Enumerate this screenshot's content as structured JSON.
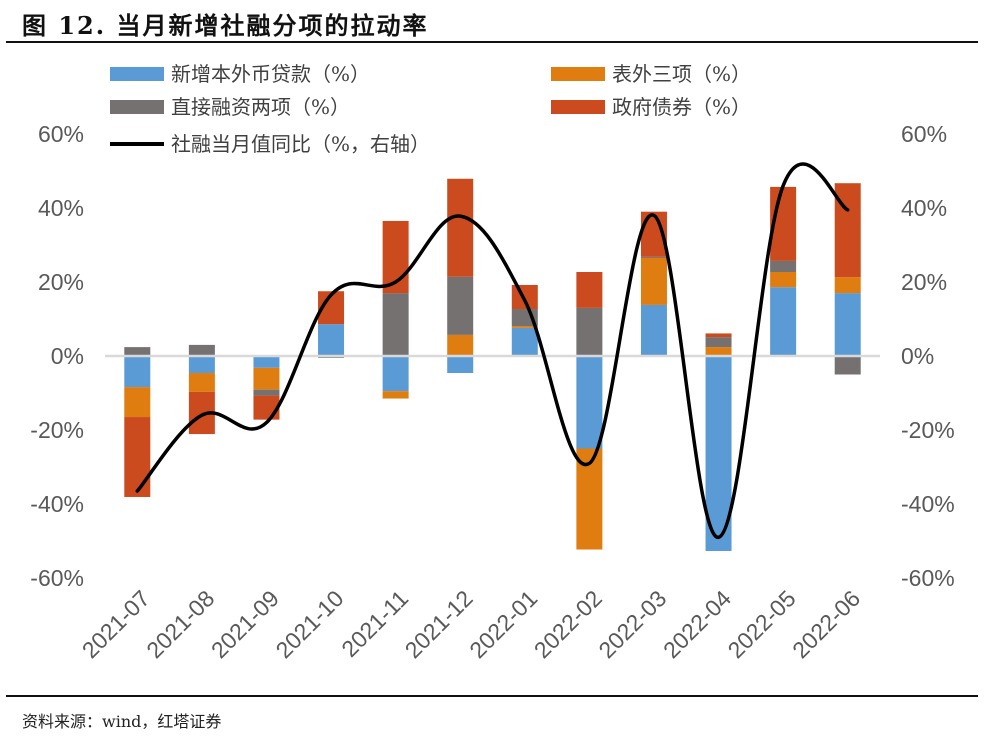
{
  "header": {
    "figure_no": "图 12.",
    "title": "当月新增社融分项的拉动率"
  },
  "footer": {
    "source": "资料来源：wind，红塔证券"
  },
  "chart_data": {
    "type": "bar",
    "stacked": true,
    "title": "当月新增社融分项的拉动率",
    "categories": [
      "2021-07",
      "2021-08",
      "2021-09",
      "2021-10",
      "2021-11",
      "2021-12",
      "2022-01",
      "2022-02",
      "2022-03",
      "2022-04",
      "2022-05",
      "2022-06"
    ],
    "series": [
      {
        "name": "新增本外币贷款（%）",
        "color": "#5B9BD5",
        "values": [
          -8.4,
          -4.6,
          -3.2,
          8.6,
          -9.5,
          -4.6,
          7.6,
          -25.0,
          13.8,
          -52.7,
          18.6,
          17.0
        ]
      },
      {
        "name": "表外三项（%）",
        "color": "#E07D10",
        "values": [
          -8.1,
          -5.1,
          -5.9,
          0.0,
          -2.0,
          5.7,
          0.5,
          -27.3,
          12.7,
          2.4,
          4.1,
          4.3
        ]
      },
      {
        "name": "直接融资两项（%）",
        "color": "#767171",
        "values": [
          2.4,
          3.0,
          -1.6,
          -0.5,
          17.0,
          15.7,
          4.6,
          13.0,
          0.3,
          2.7,
          3.0,
          -5.0
        ]
      },
      {
        "name": "政府债券（%）",
        "color": "#CB4A1E",
        "values": [
          -21.6,
          -11.4,
          -6.5,
          8.9,
          19.5,
          26.5,
          6.5,
          9.7,
          12.2,
          1.0,
          20.0,
          25.4
        ]
      }
    ],
    "line": {
      "name": "社融当月值同比（%，右轴）",
      "color": "#000000",
      "axis": "right",
      "values": [
        -36.5,
        -16.0,
        -18.0,
        16.5,
        20.0,
        37.8,
        15.0,
        -29.0,
        38.0,
        -49.0,
        46.0,
        39.5
      ]
    },
    "ylim": [
      -60,
      60
    ],
    "y2lim": [
      -60,
      60
    ],
    "yticks": [
      "60%",
      "40%",
      "20%",
      "0%",
      "-20%",
      "-40%",
      "-60%"
    ],
    "ytick_values": [
      60,
      40,
      20,
      0,
      -20,
      -40,
      -60
    ],
    "xlabel": "",
    "ylabel": "",
    "grid": false,
    "legend_position": "top"
  }
}
